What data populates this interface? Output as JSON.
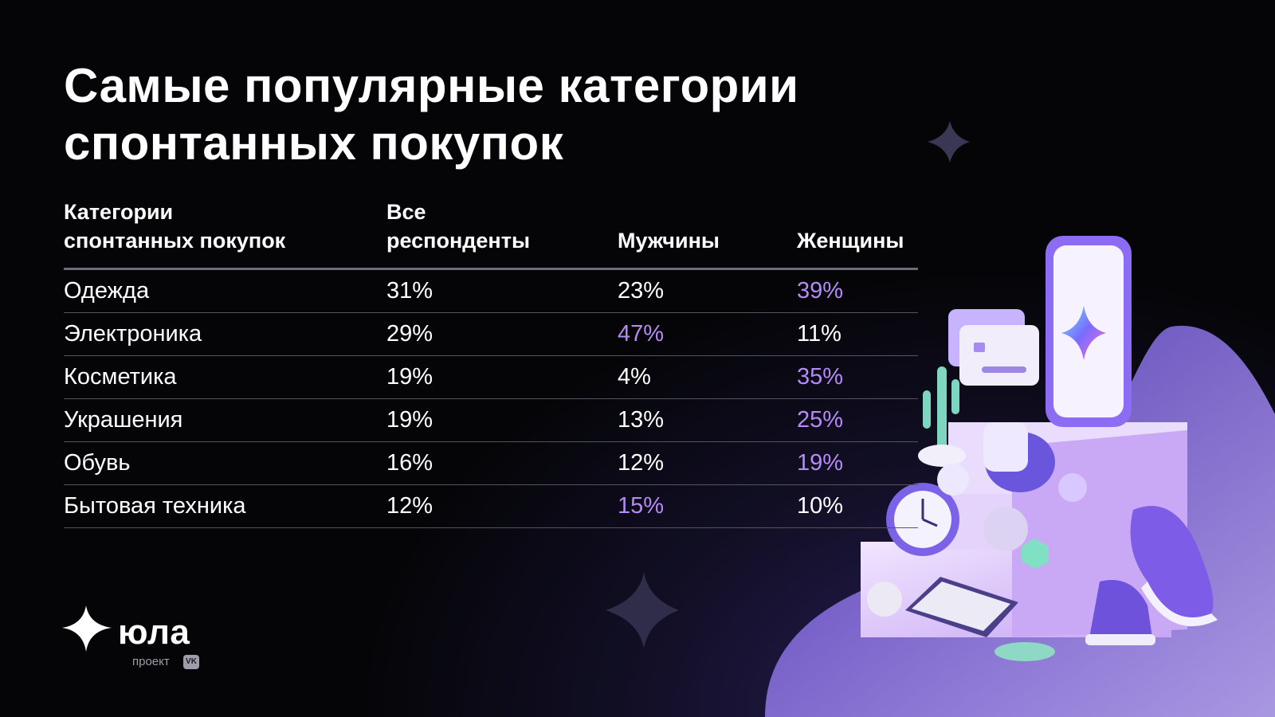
{
  "title": {
    "line1": "Самые популярные категории",
    "line2": "спонтанных покупок"
  },
  "chart_data": {
    "type": "table",
    "columns": [
      "Категории спонтанных покупок",
      "Все респонденты",
      "Мужчины",
      "Женщины"
    ],
    "header": {
      "category_line1": "Категории",
      "category_line2": "спонтанных покупок",
      "all_line1": "Все",
      "all_line2": "респонденты",
      "men": "Мужчины",
      "women": "Женщины"
    },
    "rows": [
      {
        "category": "Одежда",
        "all": "31%",
        "men": "23%",
        "women": "39%",
        "highlight": "women"
      },
      {
        "category": "Электроника",
        "all": "29%",
        "men": "47%",
        "women": "11%",
        "highlight": "men"
      },
      {
        "category": "Косметика",
        "all": "19%",
        "men": "4%",
        "women": "35%",
        "highlight": "women"
      },
      {
        "category": "Украшения",
        "all": "19%",
        "men": "13%",
        "women": "25%",
        "highlight": "women"
      },
      {
        "category": "Обувь",
        "all": "16%",
        "men": "12%",
        "women": "19%",
        "highlight": "women"
      },
      {
        "category": "Бытовая техника",
        "all": "12%",
        "men": "15%",
        "women": "10%",
        "highlight": "men"
      }
    ]
  },
  "logo": {
    "name": "юла",
    "sub": "проект",
    "badge": "VK"
  },
  "colors": {
    "highlight": "#b58af6",
    "background": "#050508",
    "accent_purple": "#7b5cf0"
  }
}
